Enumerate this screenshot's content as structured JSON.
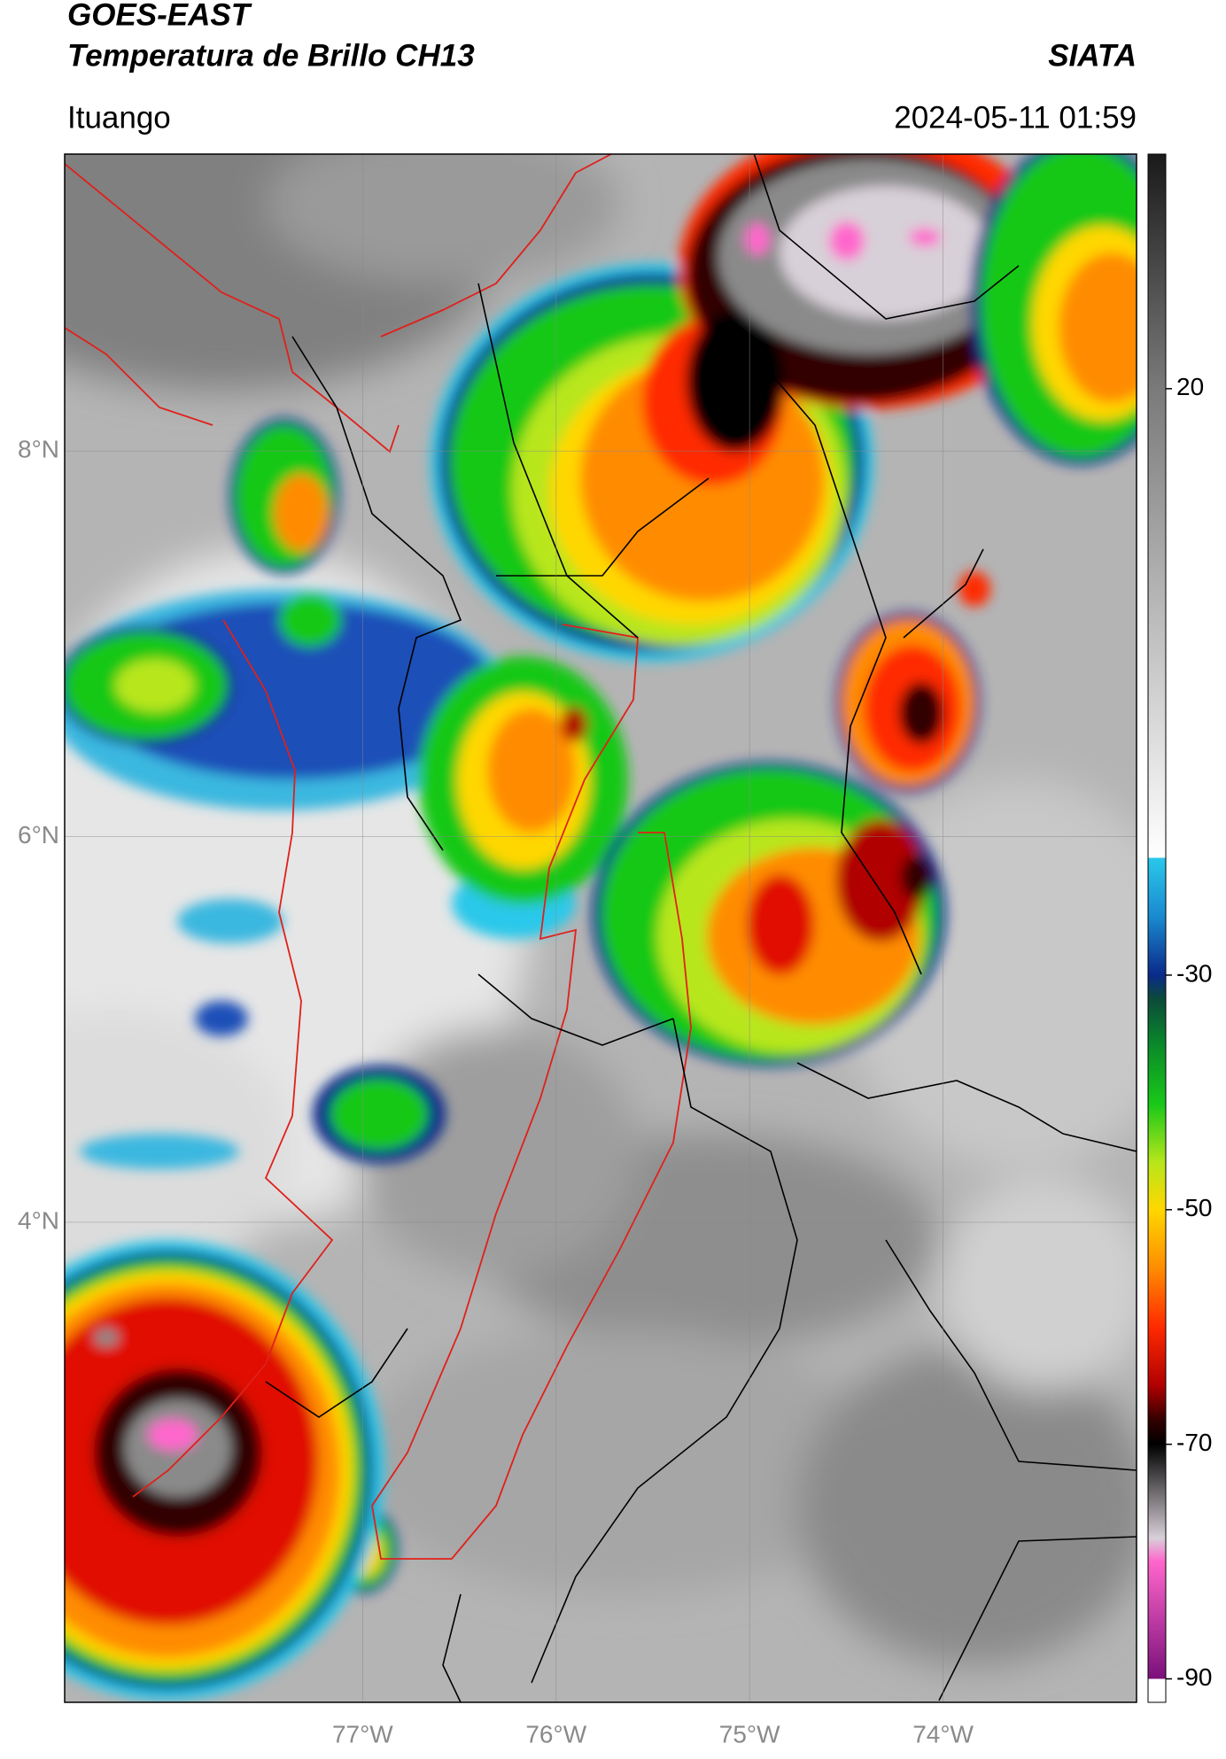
{
  "header": {
    "satellite": "GOES-EAST",
    "product": "Temperatura de Brillo CH13",
    "agency": "SIATA",
    "location": "Ituango",
    "datetime": "2024-05-11 01:59"
  },
  "map": {
    "lon_range": [
      -78.54,
      -73.0
    ],
    "lat_range": [
      1.51,
      9.54
    ],
    "lon_ticks": [
      {
        "value": -77,
        "label": "77°W"
      },
      {
        "value": -76,
        "label": "76°W"
      },
      {
        "value": -75,
        "label": "75°W"
      },
      {
        "value": -74,
        "label": "74°W"
      }
    ],
    "lat_ticks": [
      {
        "value": 8,
        "label": "8°N"
      },
      {
        "value": 6,
        "label": "6°N"
      },
      {
        "value": 4,
        "label": "4°N"
      }
    ],
    "grid": true
  },
  "colorbar": {
    "range": [
      -92,
      40
    ],
    "ticks": [
      20,
      -30,
      -50,
      -70,
      -90
    ],
    "stops": [
      {
        "value": 40,
        "color": "#1a1a1a"
      },
      {
        "value": 20,
        "color": "#7a7a7a"
      },
      {
        "value": -20,
        "color": "#ffffff"
      },
      {
        "value": -20,
        "color": "#2ac8ea"
      },
      {
        "value": -25,
        "color": "#1a8ad0"
      },
      {
        "value": -30,
        "color": "#0a2a8a"
      },
      {
        "value": -32,
        "color": "#0b4a3a"
      },
      {
        "value": -36,
        "color": "#0a8a2a"
      },
      {
        "value": -41,
        "color": "#19c819"
      },
      {
        "value": -46,
        "color": "#b8e61a"
      },
      {
        "value": -50,
        "color": "#ffd700"
      },
      {
        "value": -55,
        "color": "#ff8c00"
      },
      {
        "value": -60,
        "color": "#ff2a00"
      },
      {
        "value": -65,
        "color": "#b00000"
      },
      {
        "value": -68,
        "color": "#300000"
      },
      {
        "value": -70,
        "color": "#000000"
      },
      {
        "value": -78,
        "color": "#d8d0d8"
      },
      {
        "value": -80,
        "color": "#ff66cc"
      },
      {
        "value": -90,
        "color": "#7a107a"
      },
      {
        "value": -90,
        "color": "#ffffff"
      },
      {
        "value": -92,
        "color": "#ffffff"
      }
    ]
  }
}
